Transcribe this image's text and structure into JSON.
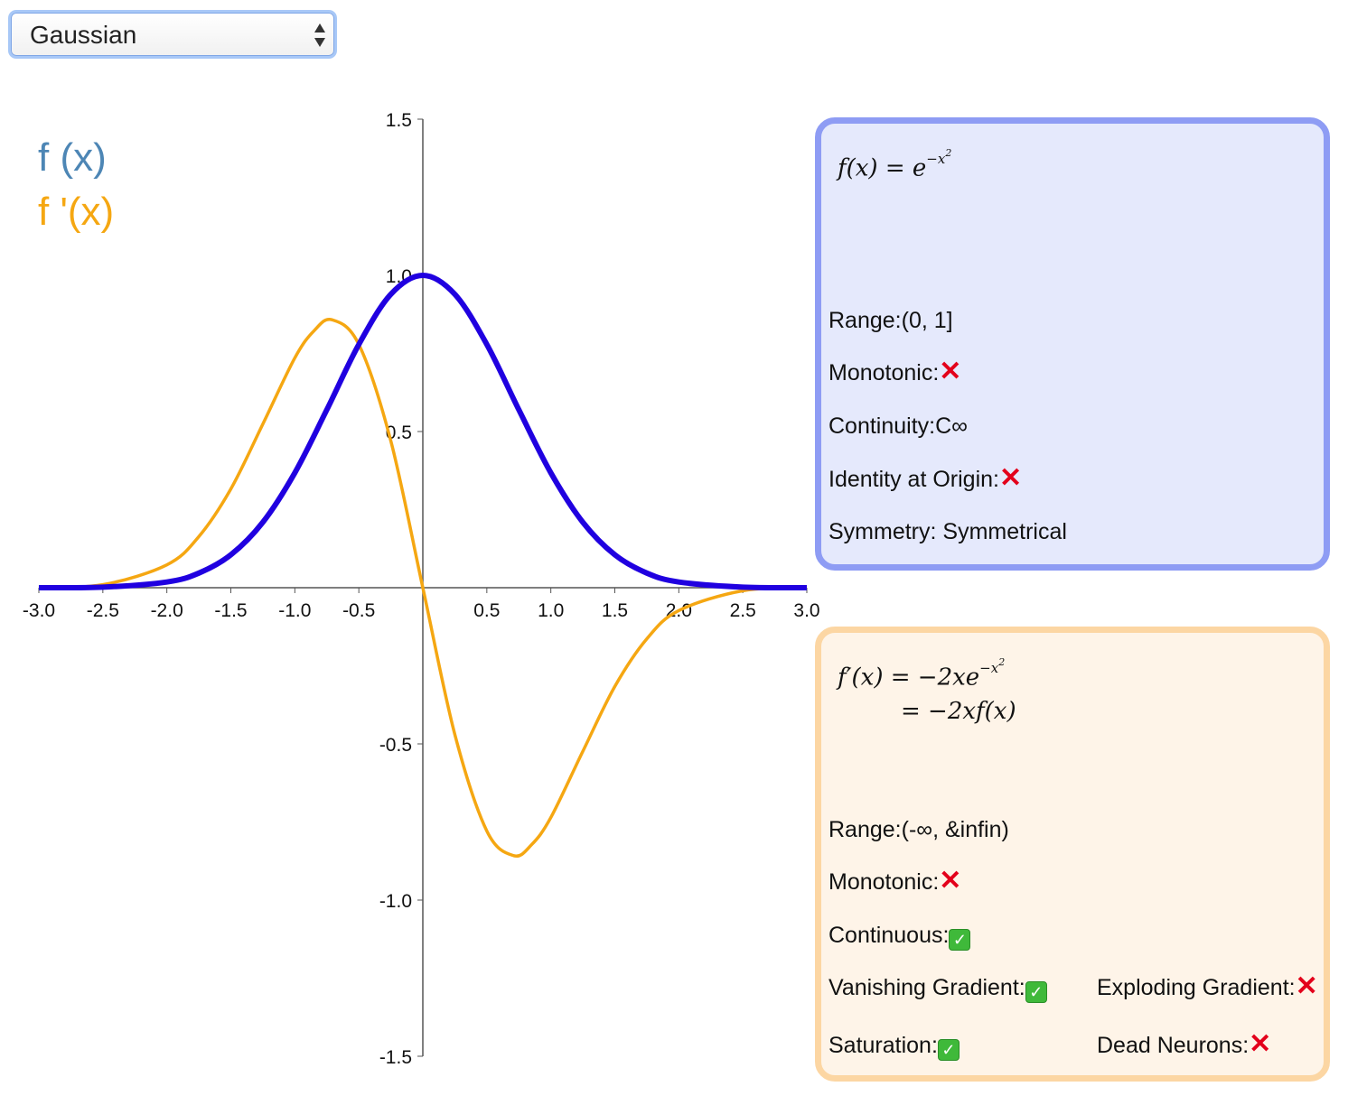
{
  "selector": {
    "value": "Gaussian"
  },
  "legend": {
    "f": "f (x)",
    "fprime": "f '(x)"
  },
  "colors": {
    "f": "#2000e0",
    "fprime": "#f5a712",
    "legend_f": "#4d86b5",
    "axis": "#555555"
  },
  "f_panel": {
    "formula_lhs": "f(x) = e",
    "formula_exp": "−x",
    "formula_exp2": "2",
    "range_label": "Range:(0, 1]",
    "monotonic_label": "Monotonic:",
    "monotonic_icon": "cross-icon",
    "continuity_label": "Continuity:C∞",
    "identity_label": "Identity at Origin:",
    "identity_icon": "cross-icon",
    "symmetry_label": "Symmetry: Symmetrical"
  },
  "fp_panel": {
    "formula_line1_lhs": "f′(x) = −2xe",
    "formula_line1_exp": "−x",
    "formula_line1_exp2": "2",
    "formula_line2": "= −2xf(x)",
    "range_label": "Range:(-∞, &infin)",
    "monotonic_label": "Monotonic:",
    "monotonic_icon": "cross-icon",
    "continuous_label": "Continuous:",
    "continuous_icon": "check-icon",
    "vanishing_label": "Vanishing Gradient:",
    "vanishing_icon": "check-icon",
    "exploding_label": "Exploding Gradient:",
    "exploding_icon": "cross-icon",
    "saturation_label": "Saturation:",
    "saturation_icon": "check-icon",
    "dead_label": "Dead Neurons:",
    "dead_icon": "cross-icon"
  },
  "chart_data": {
    "type": "line",
    "xlim": [
      -3,
      3
    ],
    "ylim": [
      -1.5,
      1.5
    ],
    "x_ticks": [
      -3.0,
      -2.5,
      -2.0,
      -1.5,
      -1.0,
      -0.5,
      0.5,
      1.0,
      1.5,
      2.0,
      2.5,
      3.0
    ],
    "x_tick_labels": [
      "-3.0",
      "-2.5",
      "-2.0",
      "-1.5",
      "-1.0",
      "-0.5",
      "0.5",
      "1.0",
      "1.5",
      "2.0",
      "2.5",
      "3.0"
    ],
    "y_ticks": [
      1.5,
      1.0,
      0.5,
      -0.5,
      -1.0,
      -1.5
    ],
    "y_tick_labels": [
      "1.5",
      "1.0",
      "0.5",
      "-0.5",
      "-1.0",
      "-1.5"
    ],
    "grid": false,
    "legend_position": "top-left",
    "series": [
      {
        "name": "f (x)",
        "color": "#2000e0",
        "x": [
          -3.0,
          -2.5,
          -2.0,
          -1.75,
          -1.5,
          -1.25,
          -1.0,
          -0.75,
          -0.5,
          -0.25,
          0.0,
          0.25,
          0.5,
          0.75,
          1.0,
          1.25,
          1.5,
          1.75,
          2.0,
          2.5,
          3.0
        ],
        "y": [
          0.0001,
          0.0019,
          0.0183,
          0.0468,
          0.1054,
          0.2096,
          0.3679,
          0.5698,
          0.7788,
          0.9394,
          1.0,
          0.9394,
          0.7788,
          0.5698,
          0.3679,
          0.2096,
          0.1054,
          0.0468,
          0.0183,
          0.0019,
          0.0001
        ]
      },
      {
        "name": "f '(x)",
        "color": "#f5a712",
        "x": [
          -3.0,
          -2.5,
          -2.0,
          -1.75,
          -1.5,
          -1.25,
          -1.0,
          -0.85,
          -0.71,
          -0.5,
          -0.25,
          0.0,
          0.25,
          0.5,
          0.71,
          0.85,
          1.0,
          1.25,
          1.5,
          1.75,
          2.0,
          2.5,
          3.0
        ],
        "y": [
          0.0007,
          0.0097,
          0.0733,
          0.1637,
          0.3162,
          0.5239,
          0.7358,
          0.8225,
          0.8578,
          0.7788,
          0.4697,
          0.0,
          -0.4697,
          -0.7788,
          -0.8578,
          -0.8225,
          -0.7358,
          -0.5239,
          -0.3162,
          -0.1637,
          -0.0733,
          -0.0097,
          -0.0007
        ]
      }
    ]
  }
}
